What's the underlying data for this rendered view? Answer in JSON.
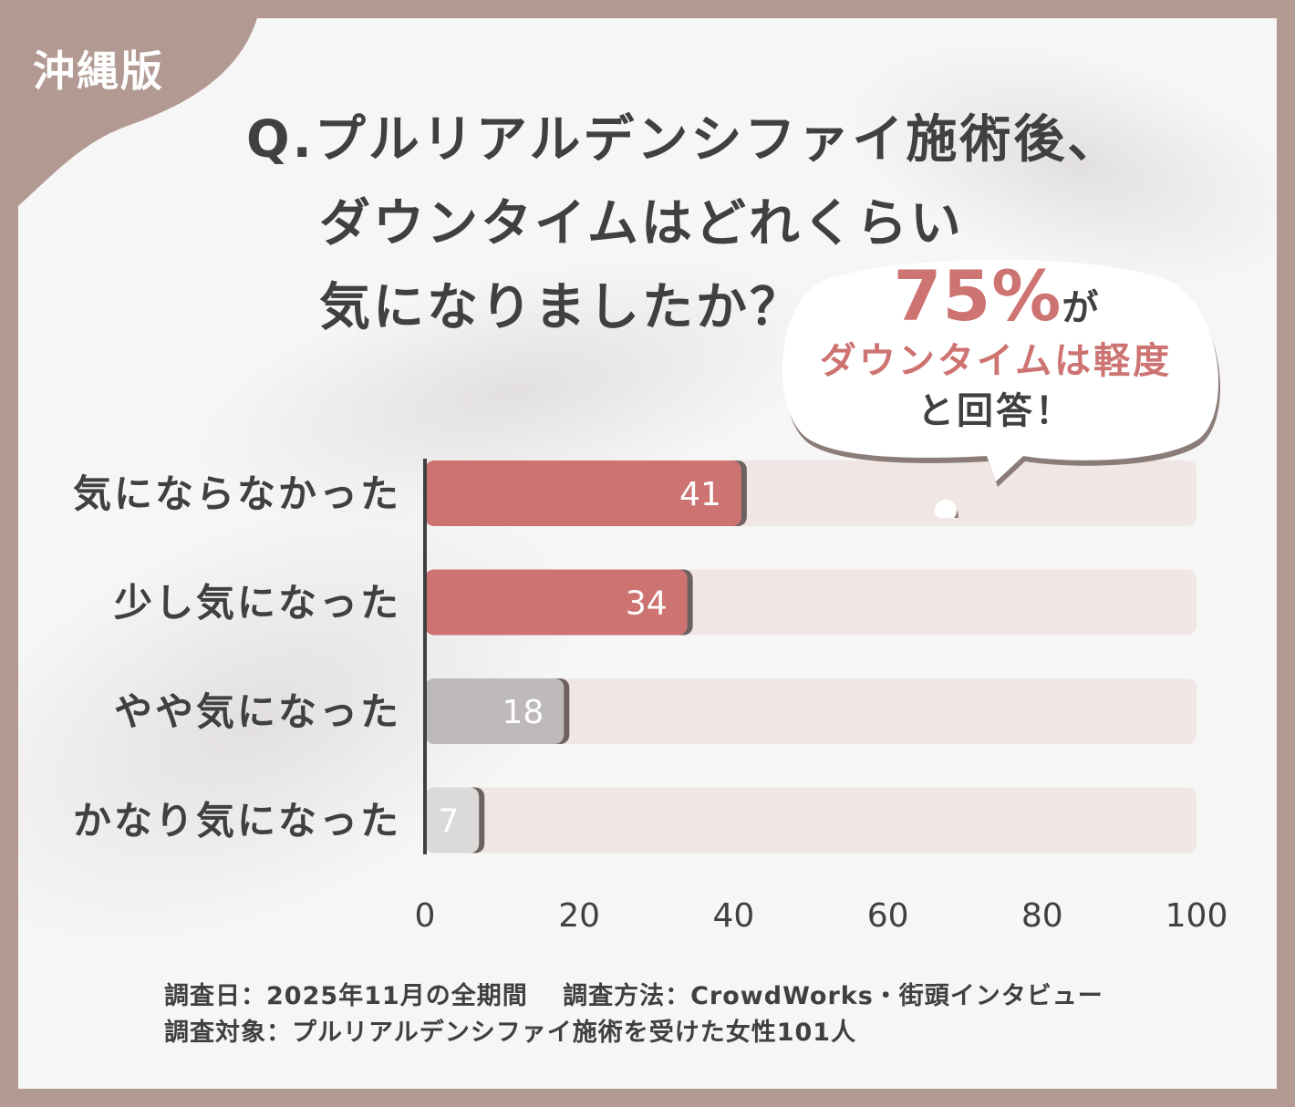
{
  "region_tag": "沖縄版",
  "question": {
    "line1": "Q.プルリアルデンシファイ施術後、",
    "line2": "ダウンタイムはどれくらい",
    "line3": "気になりましたか？"
  },
  "callout": {
    "percent": "75%",
    "suffix": "が",
    "line2": "ダウンタイムは軽度",
    "line3": "と回答！"
  },
  "chart_data": {
    "type": "bar",
    "orientation": "horizontal",
    "categories": [
      "気にならなかった",
      "少し気になった",
      "やや気になった",
      "かなり気になった"
    ],
    "values": [
      41,
      34,
      18,
      7
    ],
    "xlim": [
      0,
      100
    ],
    "xticks": [
      "0",
      "20",
      "40",
      "60",
      "80",
      "100"
    ],
    "bar_colors": [
      "#cd7472",
      "#cd7472",
      "#bdbab9",
      "#dcdad9"
    ],
    "track_color": "#f0e6e4",
    "grid": false,
    "legend": "none"
  },
  "footer": {
    "line1": "調査日：2025年11月の全期間　 調査方法：CrowdWorks・街頭インタビュー",
    "line2": "調査対象：プルリアルデンシファイ施術を受けた女性101人"
  },
  "colors": {
    "frame": "#b29a93",
    "accent": "#cd7472",
    "text": "#404040"
  }
}
